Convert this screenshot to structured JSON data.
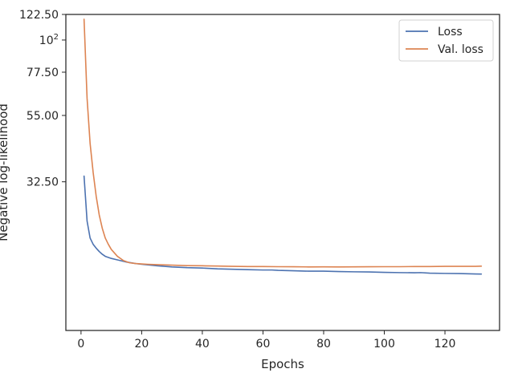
{
  "chart_data": {
    "type": "line",
    "title": "",
    "xlabel": "Epochs",
    "ylabel": "Negative log-likelihood",
    "xlim": [
      -5,
      138
    ],
    "ylim": [
      10,
      122.5
    ],
    "yscale": "log",
    "xticks": [
      {
        "value": 0,
        "label": "0"
      },
      {
        "value": 20,
        "label": "20"
      },
      {
        "value": 40,
        "label": "40"
      },
      {
        "value": 60,
        "label": "60"
      },
      {
        "value": 80,
        "label": "80"
      },
      {
        "value": 100,
        "label": "100"
      },
      {
        "value": 120,
        "label": "120"
      }
    ],
    "yticks": [
      {
        "value": 32.5,
        "label": "32.50",
        "sup": ""
      },
      {
        "value": 55,
        "label": "55.00",
        "sup": ""
      },
      {
        "value": 77.5,
        "label": "77.50",
        "sup": ""
      },
      {
        "value": 100,
        "label": "10",
        "sup": "2"
      },
      {
        "value": 122.5,
        "label": "122.50",
        "sup": ""
      }
    ],
    "grid": false,
    "legend_position": "top-right",
    "series": [
      {
        "name": "Loss",
        "color": "#4c72b0",
        "x": [
          1,
          2,
          3,
          4,
          5,
          6,
          7,
          8,
          10,
          12,
          15,
          18,
          20,
          25,
          30,
          35,
          40,
          45,
          50,
          55,
          60,
          63,
          65,
          70,
          75,
          80,
          85,
          90,
          95,
          100,
          105,
          110,
          112,
          115,
          120,
          125,
          130,
          132
        ],
        "y": [
          34.0,
          23.8,
          20.8,
          19.8,
          19.2,
          18.7,
          18.3,
          18.0,
          17.7,
          17.5,
          17.2,
          17.0,
          16.9,
          16.7,
          16.55,
          16.45,
          16.4,
          16.3,
          16.25,
          16.2,
          16.15,
          16.15,
          16.1,
          16.05,
          16.0,
          16.0,
          15.95,
          15.92,
          15.9,
          15.85,
          15.82,
          15.8,
          15.82,
          15.75,
          15.72,
          15.7,
          15.65,
          15.64
        ]
      },
      {
        "name": "Val. loss",
        "color": "#dd8452",
        "x": [
          1,
          2,
          3,
          4,
          5,
          6,
          7,
          8,
          9,
          10,
          12,
          14,
          16,
          18,
          20,
          22,
          25,
          30,
          35,
          40,
          45,
          50,
          55,
          60,
          65,
          70,
          75,
          80,
          85,
          90,
          95,
          100,
          105,
          110,
          115,
          120,
          125,
          130,
          132
        ],
        "y": [
          118.0,
          63.0,
          44.0,
          35.0,
          29.0,
          25.0,
          22.5,
          20.8,
          19.8,
          19.0,
          18.0,
          17.4,
          17.1,
          17.0,
          16.95,
          16.9,
          16.85,
          16.78,
          16.72,
          16.7,
          16.66,
          16.63,
          16.6,
          16.6,
          16.58,
          16.57,
          16.55,
          16.56,
          16.55,
          16.56,
          16.57,
          16.58,
          16.58,
          16.6,
          16.6,
          16.62,
          16.62,
          16.63,
          16.65
        ]
      }
    ]
  }
}
